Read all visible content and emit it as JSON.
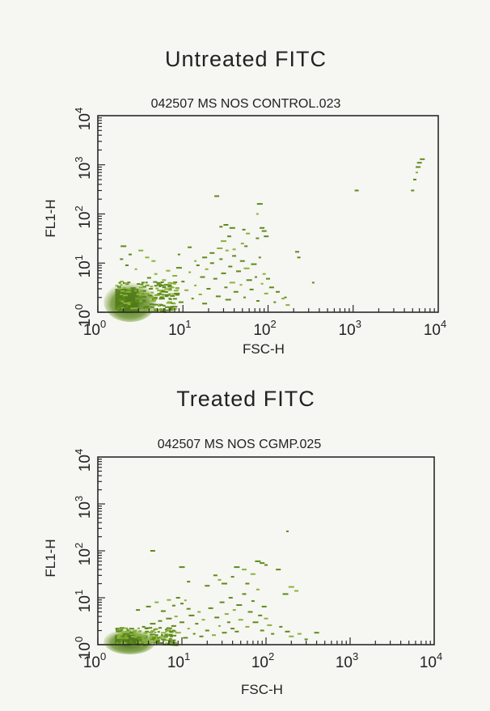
{
  "colors": {
    "dots": "#5e8a1c",
    "dots_dense": "#4f7a18",
    "dots_light": "#8ab23a",
    "axis": "#2a2a2a"
  },
  "chart_data": [
    {
      "type": "scatter",
      "heading": "Untreated FITC",
      "title": "042507 MS NOS CONTROL.023",
      "xlabel": "FSC-H",
      "ylabel": "FL1-H",
      "xscale": "log",
      "yscale": "log",
      "xlim": [
        1,
        10000
      ],
      "ylim": [
        1,
        10000
      ],
      "xticks": [
        {
          "base": "10",
          "exp": "0"
        },
        {
          "base": "10",
          "exp": "1"
        },
        {
          "base": "10",
          "exp": "2"
        },
        {
          "base": "10",
          "exp": "3"
        },
        {
          "base": "10",
          "exp": "4"
        }
      ],
      "yticks": [
        {
          "base": "10",
          "exp": "0"
        },
        {
          "base": "10",
          "exp": "1"
        },
        {
          "base": "10",
          "exp": "2"
        },
        {
          "base": "10",
          "exp": "3"
        },
        {
          "base": "10",
          "exp": "4"
        }
      ],
      "grid": false,
      "cluster": {
        "x_range": [
          1.6,
          3.0
        ],
        "y_range": [
          1.0,
          3.0
        ],
        "density": "very high"
      },
      "points": [
        [
          1.8,
          1.1
        ],
        [
          1.9,
          1.4
        ],
        [
          2.0,
          1.8
        ],
        [
          2.1,
          2.2
        ],
        [
          2.2,
          1.3
        ],
        [
          2.3,
          2.6
        ],
        [
          2.5,
          1.6
        ],
        [
          2.6,
          3.1
        ],
        [
          2.8,
          1.2
        ],
        [
          3.0,
          2.0
        ],
        [
          3.2,
          1.5
        ],
        [
          3.4,
          4.0
        ],
        [
          3.6,
          2.4
        ],
        [
          3.8,
          1.3
        ],
        [
          4.0,
          5.0
        ],
        [
          4.2,
          3.0
        ],
        [
          4.5,
          1.7
        ],
        [
          4.8,
          6.0
        ],
        [
          5.0,
          2.2
        ],
        [
          5.3,
          3.6
        ],
        [
          5.6,
          1.4
        ],
        [
          6.0,
          4.5
        ],
        [
          6.3,
          2.6
        ],
        [
          6.7,
          7.0
        ],
        [
          7.0,
          1.9
        ],
        [
          7.5,
          3.2
        ],
        [
          8.0,
          5.5
        ],
        [
          8.5,
          2.4
        ],
        [
          9.0,
          8.0
        ],
        [
          9.5,
          1.6
        ],
        [
          10,
          4.2
        ],
        [
          11,
          2.8
        ],
        [
          12,
          6.5
        ],
        [
          13,
          1.9
        ],
        [
          14,
          3.5
        ],
        [
          15,
          9.0
        ],
        [
          16,
          2.3
        ],
        [
          17,
          5.2
        ],
        [
          18,
          1.5
        ],
        [
          19,
          7.5
        ],
        [
          20,
          3.0
        ],
        [
          22,
          10
        ],
        [
          24,
          4.8
        ],
        [
          26,
          2.1
        ],
        [
          28,
          12
        ],
        [
          30,
          6.2
        ],
        [
          32,
          3.2
        ],
        [
          34,
          1.8
        ],
        [
          36,
          8.5
        ],
        [
          38,
          4.0
        ],
        [
          40,
          14
        ],
        [
          42,
          2.6
        ],
        [
          45,
          6.8
        ],
        [
          48,
          3.6
        ],
        [
          50,
          11
        ],
        [
          53,
          2.0
        ],
        [
          56,
          7.8
        ],
        [
          60,
          4.5
        ],
        [
          64,
          2.9
        ],
        [
          68,
          9.5
        ],
        [
          72,
          5.2
        ],
        [
          76,
          1.7
        ],
        [
          80,
          13
        ],
        [
          85,
          3.8
        ],
        [
          90,
          6.0
        ],
        [
          95,
          2.4
        ],
        [
          100,
          4.8
        ],
        [
          110,
          3.2
        ],
        [
          120,
          1.6
        ],
        [
          130,
          2.6
        ],
        [
          150,
          1.9
        ],
        [
          170,
          1.4
        ],
        [
          2.2,
          9.0
        ],
        [
          2.4,
          15
        ],
        [
          2.0,
          22
        ],
        [
          1.9,
          12
        ],
        [
          3.2,
          18
        ],
        [
          4.5,
          11
        ],
        [
          3.8,
          13
        ],
        [
          2.8,
          7.5
        ],
        [
          12,
          21
        ],
        [
          9,
          15
        ],
        [
          14,
          11
        ],
        [
          18,
          13
        ],
        [
          22,
          16
        ],
        [
          27,
          20
        ],
        [
          33,
          18
        ],
        [
          40,
          19
        ],
        [
          50,
          25
        ],
        [
          55,
          22
        ],
        [
          30,
          28
        ],
        [
          35,
          35
        ],
        [
          28,
          55
        ],
        [
          32,
          60
        ],
        [
          38,
          52
        ],
        [
          52,
          48
        ],
        [
          58,
          40
        ],
        [
          75,
          32
        ],
        [
          85,
          52
        ],
        [
          90,
          45
        ],
        [
          95,
          35
        ],
        [
          75,
          100
        ],
        [
          80,
          160
        ],
        [
          25,
          230
        ],
        [
          220,
          17
        ],
        [
          230,
          13
        ],
        [
          340,
          4
        ],
        [
          160,
          2
        ],
        [
          1100,
          300
        ],
        [
          5000,
          300
        ],
        [
          5300,
          500
        ],
        [
          5600,
          700
        ],
        [
          5800,
          900
        ],
        [
          6000,
          1100
        ],
        [
          6500,
          1300
        ]
      ]
    },
    {
      "type": "scatter",
      "heading": "Treated FITC",
      "title": "042507 MS NOS CGMP.025",
      "xlabel": "FSC-H",
      "ylabel": "FL1-H",
      "xscale": "log",
      "yscale": "log",
      "xlim": [
        1,
        10000
      ],
      "ylim": [
        1,
        10000
      ],
      "xticks": [
        {
          "base": "10",
          "exp": "0"
        },
        {
          "base": "10",
          "exp": "1"
        },
        {
          "base": "10",
          "exp": "2"
        },
        {
          "base": "10",
          "exp": "3"
        },
        {
          "base": "10",
          "exp": "4"
        }
      ],
      "yticks": [
        {
          "base": "10",
          "exp": "0"
        },
        {
          "base": "10",
          "exp": "1"
        },
        {
          "base": "10",
          "exp": "2"
        },
        {
          "base": "10",
          "exp": "3"
        },
        {
          "base": "10",
          "exp": "4"
        }
      ],
      "grid": false,
      "cluster": {
        "x_range": [
          1.6,
          3.0
        ],
        "y_range": [
          1.0,
          1.6
        ],
        "density": "very high"
      },
      "points": [
        [
          1.8,
          1.1
        ],
        [
          2.0,
          1.3
        ],
        [
          2.2,
          1.7
        ],
        [
          2.5,
          1.2
        ],
        [
          2.8,
          2.0
        ],
        [
          3.1,
          1.4
        ],
        [
          3.5,
          2.4
        ],
        [
          4.0,
          1.2
        ],
        [
          4.5,
          2.8
        ],
        [
          5.0,
          1.6
        ],
        [
          5.5,
          3.2
        ],
        [
          6.0,
          1.3
        ],
        [
          6.5,
          2.1
        ],
        [
          7.0,
          3.6
        ],
        [
          7.5,
          1.5
        ],
        [
          8.0,
          2.5
        ],
        [
          8.5,
          4.0
        ],
        [
          9.0,
          1.8
        ],
        [
          10,
          3.0
        ],
        [
          11,
          1.4
        ],
        [
          12,
          2.2
        ],
        [
          13,
          4.2
        ],
        [
          14,
          1.7
        ],
        [
          15,
          2.8
        ],
        [
          16,
          5.0
        ],
        [
          17,
          1.5
        ],
        [
          18,
          3.4
        ],
        [
          20,
          2.0
        ],
        [
          22,
          6.0
        ],
        [
          24,
          1.6
        ],
        [
          26,
          3.8
        ],
        [
          28,
          2.5
        ],
        [
          30,
          8.0
        ],
        [
          32,
          1.8
        ],
        [
          34,
          4.5
        ],
        [
          36,
          3.0
        ],
        [
          38,
          10
        ],
        [
          40,
          2.2
        ],
        [
          42,
          5.5
        ],
        [
          45,
          1.9
        ],
        [
          48,
          7.0
        ],
        [
          50,
          3.4
        ],
        [
          55,
          12
        ],
        [
          60,
          2.4
        ],
        [
          65,
          5.0
        ],
        [
          70,
          8.5
        ],
        [
          75,
          3.0
        ],
        [
          80,
          15
        ],
        [
          85,
          4.2
        ],
        [
          90,
          2.0
        ],
        [
          95,
          6.5
        ],
        [
          100,
          3.6
        ],
        [
          110,
          2.6
        ],
        [
          120,
          1.7
        ],
        [
          150,
          2.4
        ],
        [
          180,
          1.9
        ],
        [
          200,
          1.5
        ],
        [
          250,
          1.7
        ],
        [
          300,
          1.3
        ],
        [
          400,
          1.8
        ],
        [
          3.0,
          5.5
        ],
        [
          4.0,
          6.5
        ],
        [
          5.0,
          8.0
        ],
        [
          6.0,
          5.2
        ],
        [
          7.0,
          9.0
        ],
        [
          8.0,
          6.8
        ],
        [
          9.0,
          10
        ],
        [
          10,
          7.5
        ],
        [
          11,
          8.8
        ],
        [
          12,
          5.8
        ],
        [
          4.5,
          100
        ],
        [
          10,
          45
        ],
        [
          12,
          22
        ],
        [
          20,
          18
        ],
        [
          25,
          30
        ],
        [
          28,
          24
        ],
        [
          32,
          20
        ],
        [
          40,
          28
        ],
        [
          45,
          45
        ],
        [
          55,
          40
        ],
        [
          60,
          20
        ],
        [
          70,
          32
        ],
        [
          80,
          60
        ],
        [
          90,
          55
        ],
        [
          100,
          50
        ],
        [
          140,
          40
        ],
        [
          170,
          12
        ],
        [
          180,
          260
        ],
        [
          200,
          17
        ],
        [
          230,
          14
        ]
      ]
    }
  ]
}
